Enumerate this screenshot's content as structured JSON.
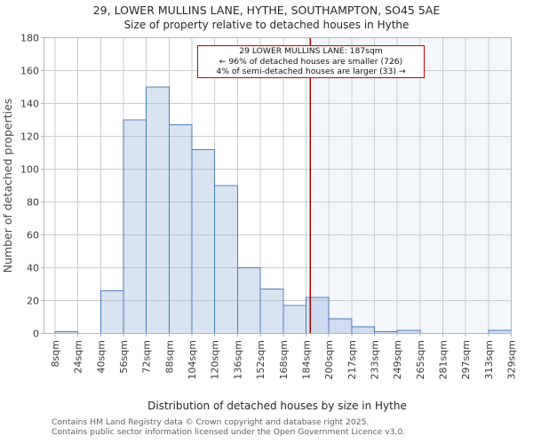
{
  "header": {
    "title": "29, LOWER MULLINS LANE, HYTHE, SOUTHAMPTON, SO45 5AE",
    "subtitle": "Size of property relative to detached houses in Hythe"
  },
  "annotation": {
    "line1": "29 LOWER MULLINS LANE: 187sqm",
    "line2": "← 96% of detached houses are smaller (726)",
    "line3": "4% of semi-detached houses are larger (33) →"
  },
  "footer": {
    "line1": "Contains HM Land Registry data © Crown copyright and database right 2025.",
    "line2": "Contains public sector information licensed under the Open Government Licence v3.0."
  },
  "chart_data": {
    "type": "bar",
    "subtype": "histogram",
    "title": "29, LOWER MULLINS LANE, HYTHE, SOUTHAMPTON, SO45 5AE",
    "subtitle": "Size of property relative to detached houses in Hythe",
    "xlabel": "Distribution of detached houses by size in Hythe",
    "ylabel": "Number of detached properties",
    "bin_edges": [
      8,
      24,
      40,
      56,
      72,
      88,
      104,
      120,
      136,
      152,
      168,
      184,
      200,
      217,
      233,
      249,
      265,
      281,
      297,
      313,
      329
    ],
    "bin_labels": [
      "8sqm",
      "24sqm",
      "40sqm",
      "56sqm",
      "72sqm",
      "88sqm",
      "104sqm",
      "120sqm",
      "136sqm",
      "152sqm",
      "168sqm",
      "184sqm",
      "200sqm",
      "217sqm",
      "233sqm",
      "249sqm",
      "265sqm",
      "281sqm",
      "297sqm",
      "313sqm",
      "329sqm"
    ],
    "values": [
      1,
      0,
      26,
      130,
      150,
      127,
      112,
      90,
      40,
      27,
      17,
      22,
      9,
      4,
      1,
      2,
      0,
      0,
      0,
      2
    ],
    "ylim": [
      0,
      180
    ],
    "yticks": [
      0,
      20,
      40,
      60,
      80,
      100,
      120,
      140,
      160,
      180
    ],
    "grid": true,
    "legend": null,
    "marker": {
      "value": 187,
      "color": "#b00000"
    },
    "shade_from": 187,
    "colors": {
      "bar_fill": "rgba(125,163,213,0.29)",
      "bar_edge": "#4a7ebe",
      "grid": "#cccccc",
      "frame": "#b5b5b5",
      "shade": "rgba(115,150,210,0.085)",
      "tick_text": "#3a3a3a"
    }
  }
}
